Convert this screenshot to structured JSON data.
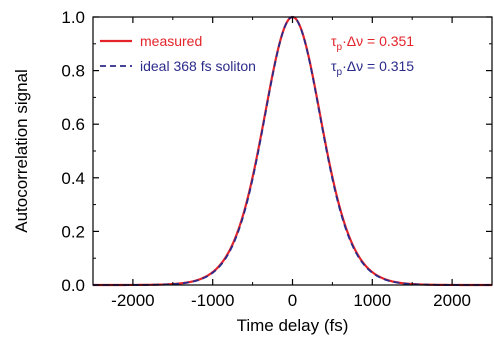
{
  "chart_data": {
    "type": "line",
    "title": "",
    "xlabel": "Time delay (fs)",
    "ylabel": "Autocorrelation signal",
    "xlim": [
      -2500,
      2500
    ],
    "ylim": [
      0.0,
      1.0
    ],
    "xticks": [
      -2000,
      -1000,
      0,
      1000,
      2000
    ],
    "xtick_labels": [
      "-2000",
      "-1000",
      "0",
      "1000",
      "2000"
    ],
    "yticks": [
      0.0,
      0.2,
      0.4,
      0.6,
      0.8,
      1.0
    ],
    "ytick_labels": [
      "0.0",
      "0.2",
      "0.4",
      "0.6",
      "0.8",
      "1.0"
    ],
    "grid": false,
    "legend_position": "top-left",
    "x": [
      -2500,
      -2000,
      -1500,
      -1200,
      -1000,
      -900,
      -800,
      -700,
      -600,
      -500,
      -400,
      -300,
      -200,
      -100,
      0,
      100,
      200,
      300,
      400,
      500,
      600,
      700,
      800,
      900,
      1000,
      1200,
      1500,
      2000,
      2500
    ],
    "series": [
      {
        "name": "measured",
        "color": "#e3242b",
        "style": "solid",
        "values": [
          0.0,
          0.0,
          0.0,
          0.002,
          0.006,
          0.01,
          0.02,
          0.045,
          0.1,
          0.19,
          0.33,
          0.51,
          0.72,
          0.91,
          1.0,
          0.91,
          0.72,
          0.51,
          0.33,
          0.19,
          0.1,
          0.045,
          0.02,
          0.01,
          0.006,
          0.002,
          0.0,
          0.0,
          0.0
        ]
      },
      {
        "name": "ideal 368 fs soliton",
        "color": "#2b2b8c",
        "style": "dashed",
        "values": [
          0.0,
          0.0,
          0.0,
          0.001,
          0.004,
          0.008,
          0.018,
          0.042,
          0.095,
          0.185,
          0.325,
          0.505,
          0.715,
          0.905,
          1.0,
          0.905,
          0.715,
          0.505,
          0.325,
          0.185,
          0.095,
          0.042,
          0.018,
          0.008,
          0.004,
          0.001,
          0.0,
          0.0,
          0.0
        ]
      }
    ],
    "annotations": [
      {
        "symbol": "τ",
        "subscript": "p",
        "rest": "·Δν = 0.351",
        "color": "#e3242b"
      },
      {
        "symbol": "τ",
        "subscript": "p",
        "rest": "·Δν = 0.315",
        "color": "#2b2b8c"
      }
    ]
  }
}
